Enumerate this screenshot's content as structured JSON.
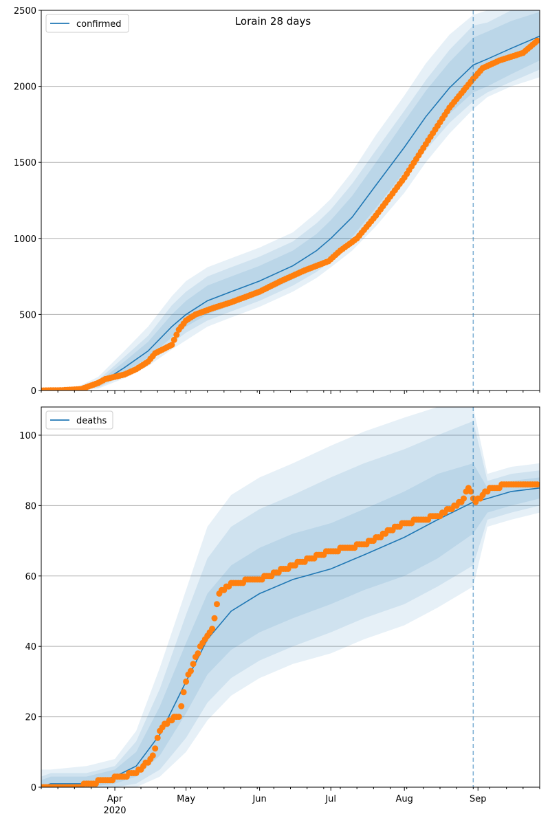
{
  "colors": {
    "model": "#1f77b4",
    "observed": "#ff7f0e",
    "band": "#1f77b4",
    "grid": "#b0b0b0",
    "forecast_line": "#1f77b4"
  },
  "chart_data": [
    {
      "type": "line",
      "title": "Lorain 28 days",
      "legend": "confirmed",
      "legend_position": "top-left",
      "grid": "horizontal",
      "x_ticks": [
        "Apr",
        "May",
        "Jun",
        "Jul",
        "Aug",
        "Sep"
      ],
      "x_year_label": "2020",
      "xlim": [
        "2020-03-01",
        "2020-09-27"
      ],
      "ylim": [
        0,
        2500
      ],
      "y_ticks": [
        0,
        500,
        1000,
        1500,
        2000,
        2500
      ],
      "forecast_start": "2020-08-30",
      "model": {
        "x": [
          "2020-03-01",
          "2020-03-15",
          "2020-03-25",
          "2020-04-05",
          "2020-04-15",
          "2020-04-25",
          "2020-05-01",
          "2020-05-10",
          "2020-05-20",
          "2020-06-01",
          "2020-06-15",
          "2020-06-25",
          "2020-07-01",
          "2020-07-10",
          "2020-07-20",
          "2020-08-01",
          "2020-08-10",
          "2020-08-20",
          "2020-08-30",
          "2020-09-05",
          "2020-09-15",
          "2020-09-27"
        ],
        "y": [
          0,
          5,
          40,
          150,
          260,
          420,
          500,
          590,
          650,
          720,
          820,
          920,
          1000,
          1140,
          1350,
          1600,
          1800,
          1990,
          2140,
          2180,
          2250,
          2330
        ]
      },
      "bands": [
        {
          "lower": [
            0,
            3,
            28,
            120,
            215,
            350,
            420,
            500,
            560,
            630,
            730,
            820,
            890,
            1010,
            1200,
            1440,
            1640,
            1820,
            1960,
            2000,
            2080,
            2170
          ],
          "upper": [
            0,
            8,
            55,
            190,
            320,
            500,
            590,
            690,
            750,
            820,
            920,
            1030,
            1120,
            1280,
            1500,
            1770,
            1970,
            2160,
            2320,
            2360,
            2430,
            2490
          ]
        },
        {
          "lower": [
            0,
            2,
            20,
            100,
            190,
            310,
            380,
            460,
            520,
            590,
            690,
            780,
            850,
            960,
            1140,
            1380,
            1580,
            1760,
            1900,
            1960,
            2030,
            2110
          ],
          "upper": [
            0,
            10,
            70,
            220,
            360,
            560,
            650,
            750,
            810,
            880,
            980,
            1100,
            1190,
            1360,
            1580,
            1840,
            2040,
            2240,
            2400,
            2420,
            2500,
            2570
          ]
        },
        {
          "lower": [
            0,
            1,
            12,
            80,
            160,
            270,
            330,
            420,
            480,
            550,
            650,
            740,
            810,
            920,
            1080,
            1300,
            1500,
            1690,
            1850,
            1930,
            2000,
            2060
          ],
          "upper": [
            0,
            14,
            90,
            260,
            420,
            620,
            720,
            810,
            870,
            940,
            1040,
            1170,
            1260,
            1440,
            1680,
            1940,
            2150,
            2340,
            2470,
            2500,
            2570,
            2650
          ]
        }
      ],
      "observed": {
        "x": [
          "2020-03-01",
          "2020-03-10",
          "2020-03-18",
          "2020-03-25",
          "2020-03-28",
          "2020-04-05",
          "2020-04-10",
          "2020-04-15",
          "2020-04-18",
          "2020-04-25",
          "2020-04-28",
          "2020-05-01",
          "2020-05-05",
          "2020-05-12",
          "2020-05-20",
          "2020-06-01",
          "2020-06-10",
          "2020-06-20",
          "2020-06-30",
          "2020-07-05",
          "2020-07-12",
          "2020-07-20",
          "2020-08-01",
          "2020-08-10",
          "2020-08-20",
          "2020-08-30",
          "2020-09-03",
          "2020-09-10",
          "2020-09-20",
          "2020-09-26"
        ],
        "y": [
          0,
          2,
          10,
          50,
          75,
          105,
          140,
          190,
          245,
          300,
          400,
          460,
          500,
          540,
          580,
          650,
          720,
          790,
          850,
          920,
          1000,
          1150,
          1400,
          1620,
          1860,
          2050,
          2120,
          2170,
          2220,
          2300
        ]
      }
    },
    {
      "type": "line",
      "legend": "deaths",
      "legend_position": "top-left",
      "grid": "horizontal",
      "x_ticks": [
        "Apr",
        "May",
        "Jun",
        "Jul",
        "Aug",
        "Sep"
      ],
      "x_year_label": "2020",
      "xlim": [
        "2020-03-01",
        "2020-09-27"
      ],
      "ylim": [
        0,
        108
      ],
      "y_ticks": [
        0,
        20,
        40,
        60,
        80,
        100
      ],
      "forecast_start": "2020-08-30",
      "model": {
        "x": [
          "2020-03-01",
          "2020-03-05",
          "2020-03-20",
          "2020-04-01",
          "2020-04-10",
          "2020-04-20",
          "2020-05-01",
          "2020-05-10",
          "2020-05-20",
          "2020-06-01",
          "2020-06-15",
          "2020-07-01",
          "2020-07-15",
          "2020-08-01",
          "2020-08-15",
          "2020-08-30",
          "2020-09-05",
          "2020-09-15",
          "2020-09-27"
        ],
        "y": [
          0,
          1,
          1,
          3,
          6,
          15,
          30,
          42,
          50,
          55,
          59,
          62,
          66,
          71,
          76,
          81,
          82,
          84,
          85
        ]
      },
      "bands": [
        {
          "lower": [
            0,
            0,
            0,
            1,
            3,
            9,
            21,
            32,
            39,
            44,
            48,
            52,
            56,
            60,
            65,
            72,
            78,
            80,
            82
          ],
          "upper": [
            2,
            3,
            3,
            5,
            10,
            23,
            41,
            55,
            63,
            68,
            72,
            75,
            79,
            84,
            89,
            92,
            85,
            87,
            88
          ]
        },
        {
          "lower": [
            0,
            0,
            0,
            0,
            1,
            5,
            14,
            24,
            31,
            36,
            40,
            44,
            48,
            52,
            57,
            63,
            76,
            78,
            80
          ],
          "upper": [
            3,
            4,
            4,
            6,
            13,
            28,
            49,
            65,
            74,
            79,
            83,
            88,
            92,
            96,
            100,
            104,
            87,
            89,
            90
          ]
        },
        {
          "lower": [
            0,
            0,
            0,
            0,
            0,
            3,
            10,
            19,
            26,
            31,
            35,
            38,
            42,
            46,
            51,
            57,
            74,
            76,
            78
          ],
          "upper": [
            5,
            5,
            6,
            8,
            16,
            34,
            56,
            74,
            83,
            88,
            92,
            97,
            101,
            105,
            108,
            108,
            89,
            91,
            92
          ]
        }
      ],
      "observed": {
        "x": [
          "2020-03-01",
          "2020-03-15",
          "2020-03-28",
          "2020-04-05",
          "2020-04-12",
          "2020-04-17",
          "2020-04-20",
          "2020-04-24",
          "2020-04-28",
          "2020-05-01",
          "2020-05-04",
          "2020-05-08",
          "2020-05-12",
          "2020-05-15",
          "2020-05-20",
          "2020-06-01",
          "2020-06-15",
          "2020-07-01",
          "2020-07-15",
          "2020-08-01",
          "2020-08-15",
          "2020-08-25",
          "2020-08-28",
          "2020-08-31",
          "2020-09-06",
          "2020-09-15",
          "2020-09-26"
        ],
        "y": [
          0,
          0,
          2,
          3,
          5,
          9,
          16,
          19,
          20,
          30,
          35,
          41,
          45,
          55,
          58,
          59,
          63,
          67,
          69,
          75,
          77,
          81,
          85,
          81,
          85,
          86,
          86
        ]
      }
    }
  ]
}
